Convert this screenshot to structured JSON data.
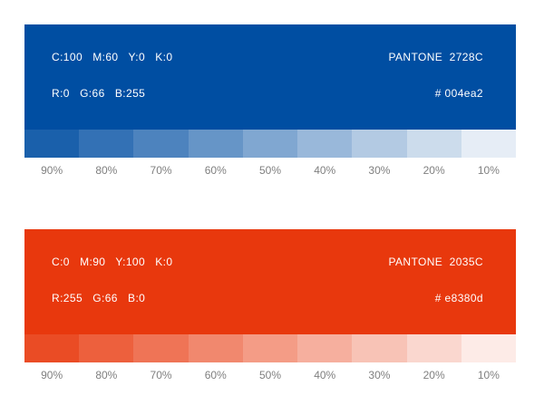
{
  "palettes": [
    {
      "name": "blue",
      "cmyk": "C:100   M:60   Y:0   K:0",
      "rgb": "R:0   G:66   B:255",
      "pantone": "PANTONE  2728C",
      "hex": "# 004ea2",
      "base_color": "#004ea2",
      "tints": [
        {
          "label": "90%",
          "color": "#1a60ab"
        },
        {
          "label": "80%",
          "color": "#3371b5"
        },
        {
          "label": "70%",
          "color": "#4d83be"
        },
        {
          "label": "60%",
          "color": "#6695c7"
        },
        {
          "label": "50%",
          "color": "#80a7d1"
        },
        {
          "label": "40%",
          "color": "#99b8da"
        },
        {
          "label": "30%",
          "color": "#b3cae3"
        },
        {
          "label": "20%",
          "color": "#ccdcec"
        },
        {
          "label": "10%",
          "color": "#e6edf6"
        }
      ]
    },
    {
      "name": "red",
      "cmyk": "C:0   M:90   Y:100   K:0",
      "rgb": "R:255   G:66   B:0",
      "pantone": "PANTONE  2035C",
      "hex": "# e8380d",
      "base_color": "#e8380d",
      "tints": [
        {
          "label": "90%",
          "color": "#ea4c25"
        },
        {
          "label": "80%",
          "color": "#ed603d"
        },
        {
          "label": "70%",
          "color": "#ef7456"
        },
        {
          "label": "60%",
          "color": "#f1886e"
        },
        {
          "label": "50%",
          "color": "#f49c86"
        },
        {
          "label": "40%",
          "color": "#f6af9e"
        },
        {
          "label": "30%",
          "color": "#f8c3b6"
        },
        {
          "label": "20%",
          "color": "#fad7cf"
        },
        {
          "label": "10%",
          "color": "#fdebe7"
        }
      ]
    }
  ]
}
